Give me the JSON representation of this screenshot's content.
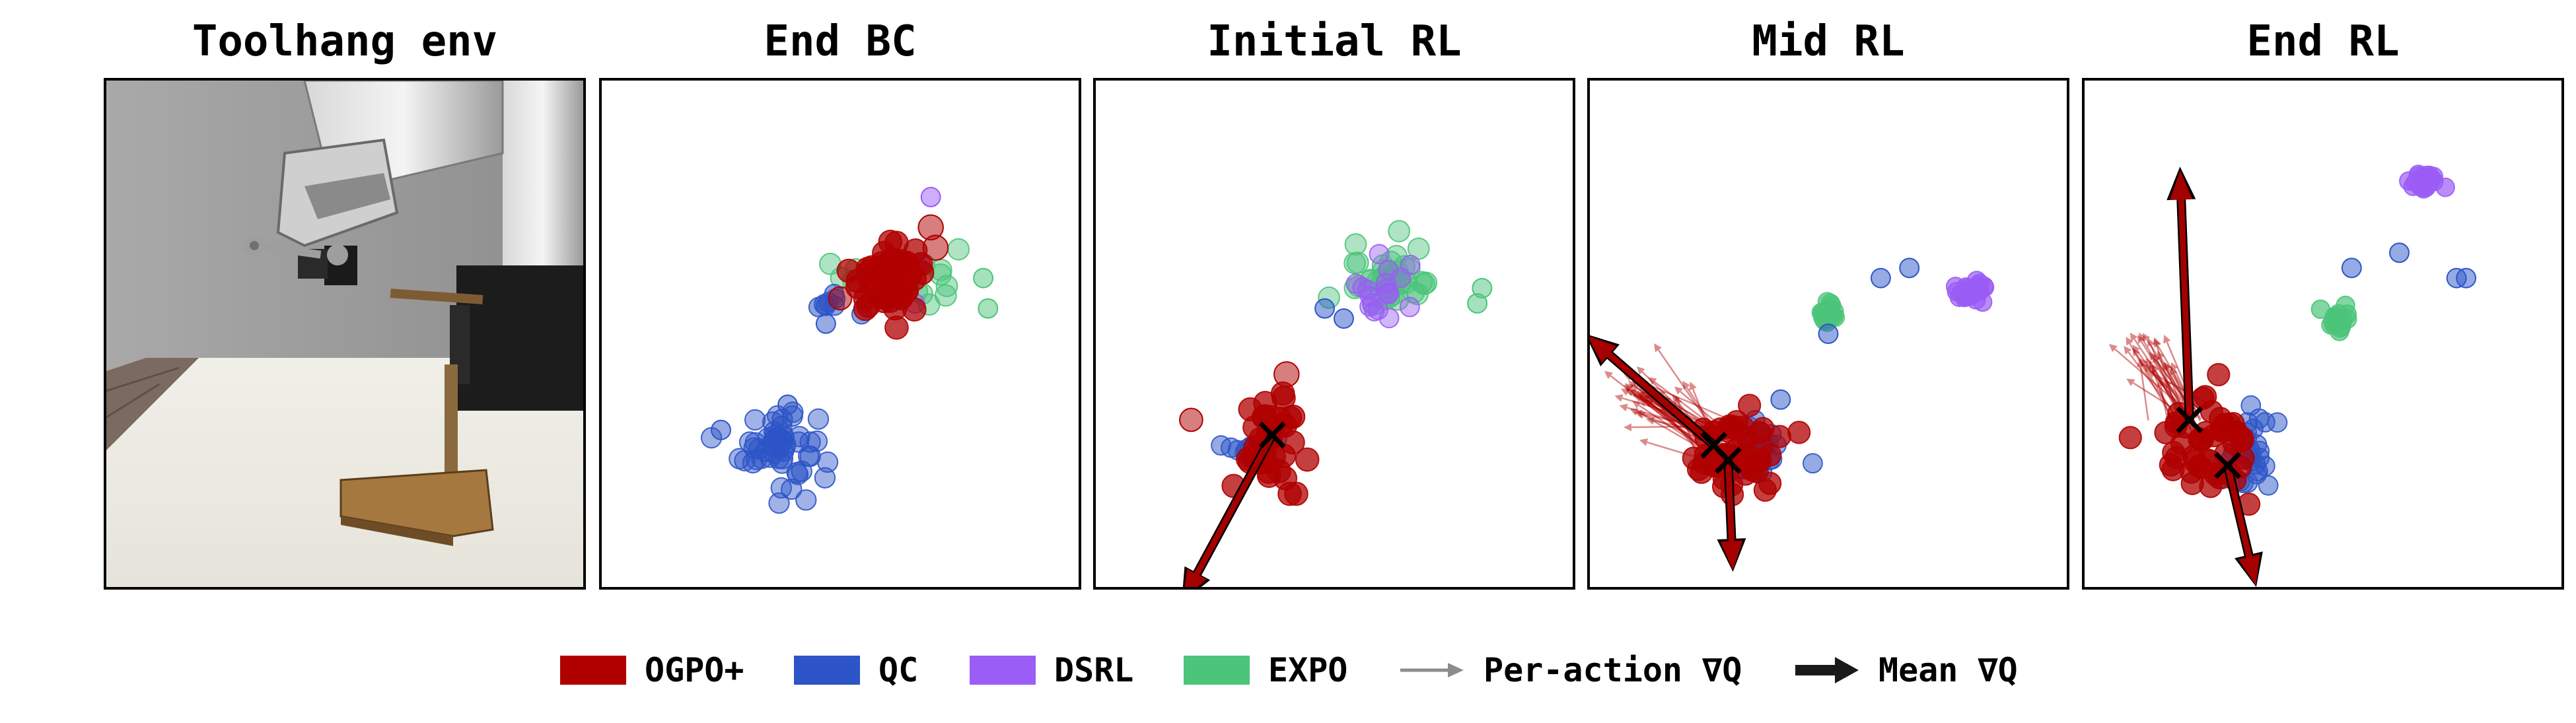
{
  "panels": [
    {
      "title": "Toolhang env"
    },
    {
      "title": "End BC"
    },
    {
      "title": "Initial RL"
    },
    {
      "title": "Mid RL"
    },
    {
      "title": "End RL"
    }
  ],
  "colors": {
    "OGPO+": "#b00000",
    "QC": "#2d55c7",
    "DSRL": "#9a5df5",
    "EXPO": "#4cc47a",
    "per_action": "#8c8c8c",
    "mean": "#1a1a1a"
  },
  "legend": [
    {
      "label": "OGPO+",
      "kind": "swatch",
      "color": "#b00000"
    },
    {
      "label": "QC",
      "kind": "swatch",
      "color": "#2d55c7"
    },
    {
      "label": "DSRL",
      "kind": "swatch",
      "color": "#9a5df5"
    },
    {
      "label": "EXPO",
      "kind": "swatch",
      "color": "#4cc47a"
    },
    {
      "label": "Per-action ∇Q",
      "kind": "thin-arrow",
      "color": "#8c8c8c"
    },
    {
      "label": "Mean ∇Q",
      "kind": "thick-arrow",
      "color": "#1a1a1a"
    }
  ],
  "chart_data": [
    {
      "type": "scatter",
      "title": "End BC",
      "xlim": [
        0,
        100
      ],
      "ylim": [
        0,
        100
      ],
      "grid": false,
      "clusters": [
        {
          "series": "EXPO",
          "cx": 63,
          "cy": 62,
          "sx": 6,
          "sy": 3,
          "n": 22,
          "r": 2.2,
          "alpha": 0.45
        },
        {
          "series": "DSRL",
          "cx": 60,
          "cy": 60,
          "sx": 4,
          "sy": 3,
          "n": 10,
          "r": 2.0,
          "alpha": 0.45
        },
        {
          "series": "QC",
          "cx": 49,
          "cy": 57,
          "sx": 3,
          "sy": 2,
          "n": 8,
          "r": 2.0,
          "alpha": 0.55
        },
        {
          "series": "QC",
          "cx": 37,
          "cy": 28,
          "sx": 4,
          "sy": 4,
          "n": 55,
          "r": 2.1,
          "alpha": 0.45
        },
        {
          "series": "OGPO+",
          "cx": 60,
          "cy": 61,
          "sx": 4,
          "sy": 3.2,
          "n": 55,
          "r": 2.4,
          "alpha": 0.75
        }
      ],
      "outliers": [
        {
          "series": "DSRL",
          "x": 69,
          "y": 77,
          "r": 2.0
        },
        {
          "series": "EXPO",
          "x": 81,
          "y": 55,
          "r": 2.0
        },
        {
          "series": "EXPO",
          "x": 80,
          "y": 61,
          "r": 2.0
        },
        {
          "series": "OGPO+",
          "x": 69,
          "y": 71,
          "r": 2.6
        },
        {
          "series": "OGPO+",
          "x": 70,
          "y": 67,
          "r": 2.6
        },
        {
          "series": "OGPO+",
          "x": 50,
          "y": 57,
          "r": 2.4
        },
        {
          "series": "QC",
          "x": 47,
          "y": 52,
          "r": 2.0
        },
        {
          "series": "QC",
          "x": 39,
          "y": 36,
          "r": 2.0
        },
        {
          "series": "QC",
          "x": 25,
          "y": 31,
          "r": 2.0
        }
      ],
      "per_action_arrows": [],
      "mean_arrows": [],
      "markers": []
    },
    {
      "type": "scatter",
      "title": "Initial RL",
      "xlim": [
        0,
        100
      ],
      "ylim": [
        0,
        100
      ],
      "grid": false,
      "clusters": [
        {
          "series": "EXPO",
          "cx": 62,
          "cy": 61,
          "sx": 4.5,
          "sy": 3,
          "n": 40,
          "r": 2.2,
          "alpha": 0.45
        },
        {
          "series": "DSRL",
          "cx": 59,
          "cy": 59,
          "sx": 4,
          "sy": 3,
          "n": 18,
          "r": 2.0,
          "alpha": 0.45
        },
        {
          "series": "QC",
          "cx": 33,
          "cy": 28,
          "sx": 3,
          "sy": 2,
          "n": 18,
          "r": 2.0,
          "alpha": 0.5
        },
        {
          "series": "OGPO+",
          "cx": 37,
          "cy": 28,
          "sx": 3.3,
          "sy": 5,
          "n": 40,
          "r": 2.4,
          "alpha": 0.75
        }
      ],
      "outliers": [
        {
          "series": "QC",
          "x": 48,
          "y": 55,
          "r": 2.0
        },
        {
          "series": "QC",
          "x": 52,
          "y": 53,
          "r": 2.0
        },
        {
          "series": "EXPO",
          "x": 81,
          "y": 59,
          "r": 2.0
        },
        {
          "series": "EXPO",
          "x": 80,
          "y": 56,
          "r": 2.0
        },
        {
          "series": "OGPO+",
          "x": 20,
          "y": 33,
          "r": 2.4
        },
        {
          "series": "OGPO+",
          "x": 40,
          "y": 42,
          "r": 2.6
        }
      ],
      "per_action_arrows": [],
      "mean_arrows": [
        {
          "from": [
            37,
            30
          ],
          "to": [
            18,
            -3
          ]
        }
      ],
      "markers": [
        [
          37,
          30
        ]
      ]
    },
    {
      "type": "scatter",
      "title": "Mid RL",
      "xlim": [
        0,
        100
      ],
      "ylim": [
        0,
        100
      ],
      "grid": false,
      "clusters": [
        {
          "series": "DSRL",
          "cx": 80,
          "cy": 58,
          "sx": 1.4,
          "sy": 1.1,
          "n": 30,
          "r": 1.9,
          "alpha": 0.7
        },
        {
          "series": "EXPO",
          "cx": 50,
          "cy": 54,
          "sx": 0.7,
          "sy": 1.1,
          "n": 20,
          "r": 1.9,
          "alpha": 0.7
        },
        {
          "series": "QC",
          "cx": 35,
          "cy": 26,
          "sx": 3,
          "sy": 3,
          "n": 25,
          "r": 2.0,
          "alpha": 0.5
        },
        {
          "series": "OGPO+",
          "cx": 30,
          "cy": 26,
          "sx": 4.5,
          "sy": 4.5,
          "n": 50,
          "r": 2.3,
          "alpha": 0.75
        }
      ],
      "outliers": [
        {
          "series": "QC",
          "x": 61,
          "y": 61,
          "r": 2.0
        },
        {
          "series": "QC",
          "x": 67,
          "y": 63,
          "r": 2.0
        },
        {
          "series": "QC",
          "x": 50,
          "y": 50,
          "r": 2.0
        },
        {
          "series": "QC",
          "x": 40,
          "y": 37,
          "r": 2.0
        }
      ],
      "per_action_arrows": [
        {
          "from": [
            27,
            28
          ],
          "to": [
            10,
            38
          ],
          "n": 45,
          "spread": 8
        }
      ],
      "mean_arrows": [
        {
          "from": [
            26,
            28
          ],
          "to": [
            -1,
            50
          ]
        },
        {
          "from": [
            29,
            25
          ],
          "to": [
            30,
            3
          ]
        }
      ],
      "markers": [
        [
          26,
          28
        ],
        [
          29,
          25
        ]
      ]
    },
    {
      "type": "scatter",
      "title": "End RL",
      "xlim": [
        0,
        100
      ],
      "ylim": [
        0,
        100
      ],
      "grid": false,
      "clusters": [
        {
          "series": "DSRL",
          "cx": 71,
          "cy": 80,
          "sx": 1.3,
          "sy": 1.1,
          "n": 30,
          "r": 1.9,
          "alpha": 0.7
        },
        {
          "series": "EXPO",
          "cx": 53,
          "cy": 53,
          "sx": 1.2,
          "sy": 1.0,
          "n": 20,
          "r": 1.9,
          "alpha": 0.7
        },
        {
          "series": "QC",
          "cx": 35,
          "cy": 27,
          "sx": 2.5,
          "sy": 4,
          "n": 30,
          "r": 2.0,
          "alpha": 0.5
        },
        {
          "series": "OGPO+",
          "cx": 26,
          "cy": 28,
          "sx": 4.5,
          "sy": 5,
          "n": 50,
          "r": 2.3,
          "alpha": 0.75
        }
      ],
      "outliers": [
        {
          "series": "QC",
          "x": 66,
          "y": 66,
          "r": 2.0
        },
        {
          "series": "QC",
          "x": 56,
          "y": 63,
          "r": 2.0
        },
        {
          "series": "QC",
          "x": 78,
          "y": 61,
          "r": 2.0
        },
        {
          "series": "QC",
          "x": 80,
          "y": 61,
          "r": 2.0
        }
      ],
      "per_action_arrows": [
        {
          "from": [
            22,
            33
          ],
          "to": [
            13,
            46
          ],
          "n": 30,
          "spread": 6
        }
      ],
      "mean_arrows": [
        {
          "from": [
            22,
            33
          ],
          "to": [
            20,
            83
          ]
        },
        {
          "from": [
            30,
            24
          ],
          "to": [
            36,
            0
          ]
        }
      ],
      "markers": [
        [
          22,
          33
        ],
        [
          30,
          24
        ]
      ]
    }
  ]
}
